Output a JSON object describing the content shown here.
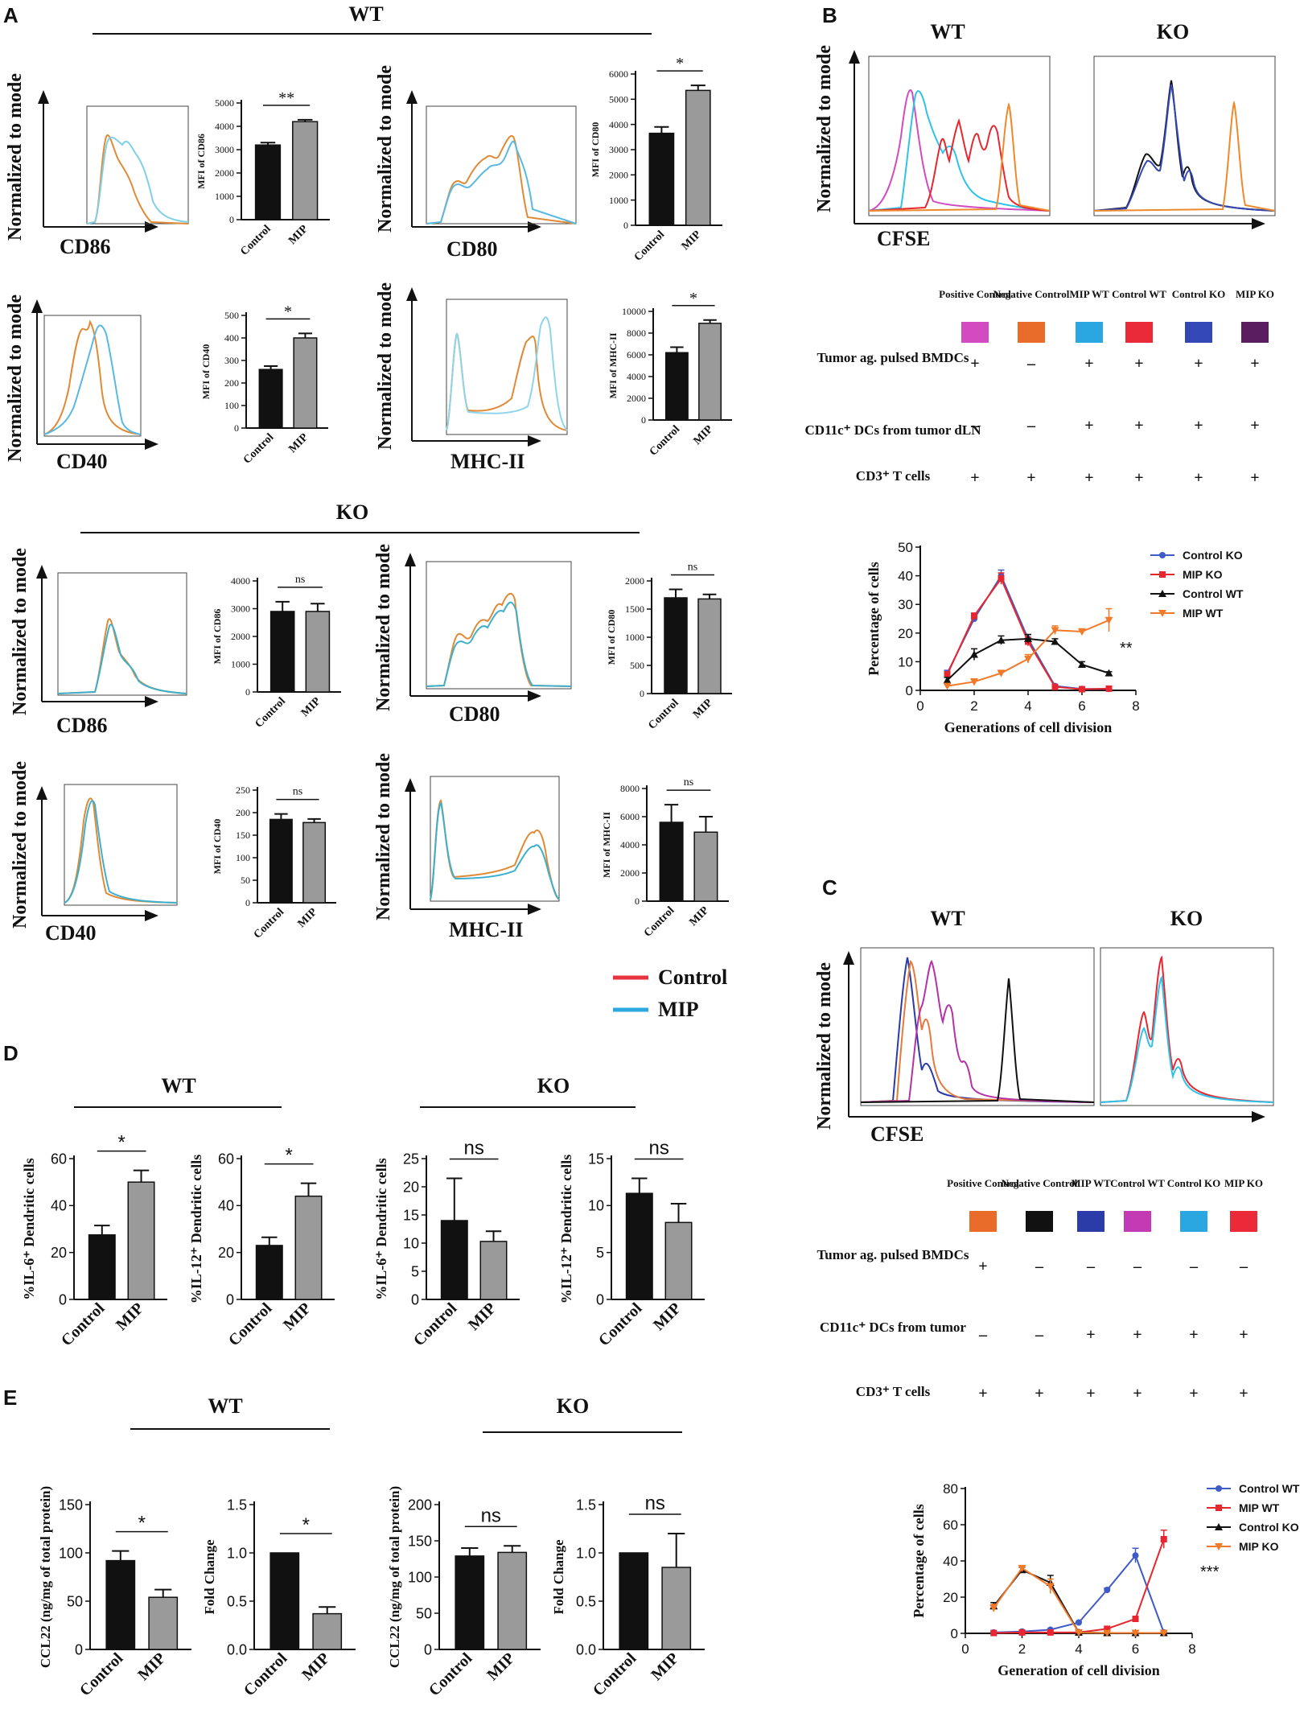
{
  "colors": {
    "control": "#e8323e",
    "mip": "#2ea7dc",
    "orange": "#ee8a2c",
    "pos_pink": "#d24bc0",
    "neg_orange": "#ea6c2a",
    "mip_wt_blue": "#2aa7e0",
    "control_wt_red": "#ea2a38",
    "control_ko_blue": "#3348b4",
    "mip_ko_purple": "#5a1d5f",
    "black_bar": "#111111",
    "gray_bar": "#9a9a9a",
    "orange_wt": "#e6793b",
    "magenta": "#b531a7",
    "navy": "#2b3ba8"
  },
  "panelA": {
    "letter": "A",
    "wt_title": "WT",
    "ko_title": "KO",
    "y_label": "Normalized to mode",
    "legend": {
      "control": "Control",
      "mip": "MIP"
    },
    "histograms": [
      {
        "marker": "CD86"
      },
      {
        "marker": "CD80"
      },
      {
        "marker": "CD40"
      },
      {
        "marker": "MHC-II"
      },
      {
        "marker": "CD86"
      },
      {
        "marker": "CD80"
      },
      {
        "marker": "CD40"
      },
      {
        "marker": "MHC-II"
      }
    ]
  },
  "panelB": {
    "letter": "B",
    "wt": "WT",
    "ko": "KO",
    "y_label": "Normalized to mode",
    "x_label": "CFSE",
    "conditions": [
      "Positive Control",
      "Negative Control",
      "MIP WT",
      "Control WT",
      "Control KO",
      "MIP KO"
    ],
    "rows": [
      {
        "label": "Tumor ag. pulsed BMDCs",
        "vals": [
          "+",
          "–",
          "+",
          "+",
          "+",
          "+"
        ]
      },
      {
        "label": "CD11c⁺ DCs from tumor dLN",
        "vals": [
          "–",
          "–",
          "+",
          "+",
          "+",
          "+"
        ]
      },
      {
        "label": "CD3⁺ T cells",
        "vals": [
          "+",
          "+",
          "+",
          "+",
          "+",
          "+"
        ]
      }
    ]
  },
  "panelC": {
    "letter": "C",
    "wt": "WT",
    "ko": "KO",
    "y_label": "Normalized to mode",
    "x_label": "CFSE",
    "conditions": [
      "Positive Control",
      "Negative Control",
      "MIP WT",
      "Control WT",
      "Control KO",
      "MIP KO"
    ],
    "rows": [
      {
        "label": "Tumor ag. pulsed BMDCs",
        "vals": [
          "+",
          "–",
          "–",
          "–",
          "–",
          "–"
        ]
      },
      {
        "label": "CD11c⁺ DCs from tumor",
        "vals": [
          "–",
          "–",
          "+",
          "+",
          "+",
          "+"
        ]
      },
      {
        "label": "CD3⁺ T cells",
        "vals": [
          "+",
          "+",
          "+",
          "+",
          "+",
          "+"
        ]
      }
    ]
  },
  "panelD": {
    "letter": "D",
    "wt": "WT",
    "ko": "KO"
  },
  "panelE": {
    "letter": "E",
    "wt": "WT",
    "ko": "KO"
  },
  "chart_data": [
    {
      "id": "A_wt_cd86",
      "type": "bar",
      "categories": [
        "Control",
        "MIP"
      ],
      "values": [
        3200,
        4200
      ],
      "errors": [
        100,
        80
      ],
      "ylabel": "MFI of CD86",
      "ylim": [
        0,
        5000
      ],
      "ticks": [
        0,
        1000,
        2000,
        3000,
        4000,
        5000
      ],
      "sig": "**"
    },
    {
      "id": "A_wt_cd80",
      "type": "bar",
      "categories": [
        "Control",
        "MIP"
      ],
      "values": [
        3650,
        5350
      ],
      "errors": [
        250,
        200
      ],
      "ylabel": "MFI of CD80",
      "ylim": [
        0,
        6000
      ],
      "ticks": [
        0,
        1000,
        2000,
        3000,
        4000,
        5000,
        6000
      ],
      "sig": "*"
    },
    {
      "id": "A_wt_cd40",
      "type": "bar",
      "categories": [
        "Control",
        "MIP"
      ],
      "values": [
        260,
        400
      ],
      "errors": [
        15,
        20
      ],
      "ylabel": "MFI of CD40",
      "ylim": [
        0,
        500
      ],
      "ticks": [
        0,
        100,
        200,
        300,
        400,
        500
      ],
      "sig": "*"
    },
    {
      "id": "A_wt_mhc",
      "type": "bar",
      "categories": [
        "Control",
        "MIP"
      ],
      "values": [
        6200,
        8900
      ],
      "errors": [
        500,
        300
      ],
      "ylabel": "MFI of MHC-II",
      "ylim": [
        0,
        10000
      ],
      "ticks": [
        0,
        2000,
        4000,
        6000,
        8000,
        10000
      ],
      "sig": "*"
    },
    {
      "id": "A_ko_cd86",
      "type": "bar",
      "categories": [
        "Control",
        "MIP"
      ],
      "values": [
        2900,
        2900
      ],
      "errors": [
        350,
        280
      ],
      "ylabel": "MFI of CD86",
      "ylim": [
        0,
        4000
      ],
      "ticks": [
        0,
        1000,
        2000,
        3000,
        4000
      ],
      "sig": "ns"
    },
    {
      "id": "A_ko_cd80",
      "type": "bar",
      "categories": [
        "Control",
        "MIP"
      ],
      "values": [
        1700,
        1680
      ],
      "errors": [
        150,
        80
      ],
      "ylabel": "MFI of CD80",
      "ylim": [
        0,
        2000
      ],
      "ticks": [
        0,
        500,
        1000,
        1500,
        2000
      ],
      "sig": "ns"
    },
    {
      "id": "A_ko_cd40",
      "type": "bar",
      "categories": [
        "Control",
        "MIP"
      ],
      "values": [
        185,
        178
      ],
      "errors": [
        12,
        8
      ],
      "ylabel": "MFI of CD40",
      "ylim": [
        0,
        250
      ],
      "ticks": [
        0,
        50,
        100,
        150,
        200,
        250
      ],
      "sig": "ns"
    },
    {
      "id": "A_ko_mhc",
      "type": "bar",
      "categories": [
        "Control",
        "MIP"
      ],
      "values": [
        5600,
        4900
      ],
      "errors": [
        1250,
        1100
      ],
      "ylabel": "MFI of MHC-II",
      "ylim": [
        0,
        8000
      ],
      "ticks": [
        0,
        2000,
        4000,
        6000,
        8000
      ],
      "sig": "ns"
    },
    {
      "id": "D_wt_il6",
      "type": "bar",
      "categories": [
        "Control",
        "MIP"
      ],
      "values": [
        27.5,
        50
      ],
      "errors": [
        4,
        5
      ],
      "ylabel": "%IL-6⁺ Dendritic cells",
      "ylim": [
        0,
        60
      ],
      "ticks": [
        0,
        20,
        40,
        60
      ],
      "sig": "*"
    },
    {
      "id": "D_wt_il12",
      "type": "bar",
      "categories": [
        "Control",
        "MIP"
      ],
      "values": [
        23,
        44
      ],
      "errors": [
        3.5,
        5.5
      ],
      "ylabel": "%IL-12⁺ Dendritic cells",
      "ylim": [
        0,
        60
      ],
      "ticks": [
        0,
        20,
        40,
        60
      ],
      "sig": "*"
    },
    {
      "id": "D_ko_il6",
      "type": "bar",
      "categories": [
        "Control",
        "MIP"
      ],
      "values": [
        14,
        10.3
      ],
      "errors": [
        7.5,
        1.8
      ],
      "ylabel": "%IL-6⁺ Dendritic cells",
      "ylim": [
        0,
        25
      ],
      "ticks": [
        0,
        5,
        10,
        15,
        20,
        25
      ],
      "sig": "ns"
    },
    {
      "id": "D_ko_il12",
      "type": "bar",
      "categories": [
        "Control",
        "MIP"
      ],
      "values": [
        11.3,
        8.2
      ],
      "errors": [
        1.6,
        2
      ],
      "ylabel": "%IL-12⁺ Dendritic cells",
      "ylim": [
        0,
        15
      ],
      "ticks": [
        0,
        5,
        10,
        15
      ],
      "sig": "ns"
    },
    {
      "id": "E_wt_ccl22",
      "type": "bar",
      "categories": [
        "Control",
        "MIP"
      ],
      "values": [
        92,
        54
      ],
      "errors": [
        10,
        8
      ],
      "ylabel": "CCL22 (ng/mg of total protein)",
      "ylim": [
        0,
        150
      ],
      "ticks": [
        0,
        50,
        100,
        150
      ],
      "sig": "*"
    },
    {
      "id": "E_wt_fold",
      "type": "bar",
      "categories": [
        "Control",
        "MIP"
      ],
      "values": [
        1.0,
        0.37
      ],
      "errors": [
        0,
        0.07
      ],
      "ylabel": "Fold Change",
      "ylim": [
        0,
        1.5
      ],
      "ticks": [
        0.0,
        0.5,
        1.0,
        1.5
      ],
      "sig": "*"
    },
    {
      "id": "E_ko_ccl22",
      "type": "bar",
      "categories": [
        "Control",
        "MIP"
      ],
      "values": [
        129,
        134
      ],
      "errors": [
        11,
        9
      ],
      "ylabel": "CCL22 (ng/mg of total protein)",
      "ylim": [
        0,
        200
      ],
      "ticks": [
        0,
        50,
        100,
        150,
        200
      ],
      "sig": "ns"
    },
    {
      "id": "E_ko_fold",
      "type": "bar",
      "categories": [
        "Control",
        "MIP"
      ],
      "values": [
        1.0,
        0.85
      ],
      "errors": [
        0,
        0.35
      ],
      "ylabel": "Fold Change",
      "ylim": [
        0,
        1.5
      ],
      "ticks": [
        0.0,
        0.5,
        1.0,
        1.5
      ],
      "sig": "ns"
    },
    {
      "id": "B_line",
      "type": "line",
      "xlabel": "Generations of cell division",
      "ylabel": "Percentage of cells",
      "xlim": [
        0,
        8
      ],
      "ylim": [
        0,
        50
      ],
      "xticks": [
        0,
        2,
        4,
        6,
        8
      ],
      "yticks": [
        0,
        10,
        20,
        30,
        40,
        50
      ],
      "sig": "**",
      "series": [
        {
          "name": "Control KO",
          "color": "#3f5bc8",
          "marker": "circle",
          "x": [
            1,
            2,
            3,
            4,
            5,
            6,
            7
          ],
          "y": [
            6,
            25,
            40,
            18,
            1.5,
            0.5,
            0.5
          ],
          "err": [
            1,
            1,
            2,
            1.5,
            0.5,
            0.3,
            0.3
          ]
        },
        {
          "name": "MIP KO",
          "color": "#e8262f",
          "marker": "square",
          "x": [
            1,
            2,
            3,
            4,
            5,
            6,
            7
          ],
          "y": [
            5.5,
            26,
            39,
            17,
            1.2,
            0.4,
            0.6
          ],
          "err": [
            1,
            1,
            2,
            1.5,
            0.5,
            0.3,
            0.3
          ]
        },
        {
          "name": "Control WT",
          "color": "#111111",
          "marker": "triangle-up",
          "x": [
            1,
            2,
            3,
            4,
            5,
            6,
            7
          ],
          "y": [
            3.5,
            12.5,
            17.5,
            18,
            17,
            9,
            6
          ],
          "err": [
            1,
            2,
            1.5,
            1.5,
            1,
            1,
            0.5
          ]
        },
        {
          "name": "MIP WT",
          "color": "#f07a2a",
          "marker": "triangle-down",
          "x": [
            1,
            2,
            3,
            4,
            5,
            6,
            7
          ],
          "y": [
            1.5,
            3,
            6,
            11,
            21,
            20.5,
            24.5
          ],
          "err": [
            0.5,
            1,
            1,
            1.5,
            1.5,
            1,
            4
          ]
        }
      ]
    },
    {
      "id": "C_line",
      "type": "line",
      "xlabel": "Generation of cell division",
      "ylabel": "Percentage of cells",
      "xlim": [
        0,
        8
      ],
      "ylim": [
        0,
        80
      ],
      "xticks": [
        0,
        2,
        4,
        6,
        8
      ],
      "yticks": [
        0,
        20,
        40,
        60,
        80
      ],
      "sig": "***",
      "series": [
        {
          "name": "Control WT",
          "color": "#3f5bc8",
          "marker": "circle",
          "x": [
            1,
            2,
            3,
            4,
            5,
            6,
            7
          ],
          "y": [
            0.5,
            1,
            2,
            6,
            24,
            43,
            0.5
          ],
          "err": [
            0.3,
            0.3,
            0.5,
            0.5,
            1,
            4,
            0.3
          ]
        },
        {
          "name": "MIP WT",
          "color": "#e8262f",
          "marker": "square",
          "x": [
            1,
            2,
            3,
            4,
            5,
            6,
            7
          ],
          "y": [
            0.2,
            0.5,
            0.5,
            0.5,
            2.5,
            8,
            52
          ],
          "err": [
            0.2,
            0.2,
            0.2,
            0.3,
            0.5,
            1,
            5
          ]
        },
        {
          "name": "Control KO",
          "color": "#111111",
          "marker": "triangle-up",
          "x": [
            1,
            2,
            3,
            4,
            5,
            6,
            7
          ],
          "y": [
            15,
            35,
            28,
            0.5,
            0.2,
            0.2,
            0.2
          ],
          "err": [
            2,
            1.5,
            4,
            0.3,
            0.2,
            0.2,
            0.2
          ]
        },
        {
          "name": "MIP KO",
          "color": "#f07a2a",
          "marker": "triangle-down",
          "x": [
            1,
            2,
            3,
            4,
            5,
            6,
            7
          ],
          "y": [
            14,
            36,
            26,
            0.4,
            0.2,
            0.2,
            0.2
          ],
          "err": [
            2,
            1.5,
            4,
            0.3,
            0.2,
            0.2,
            0.2
          ]
        }
      ]
    }
  ]
}
